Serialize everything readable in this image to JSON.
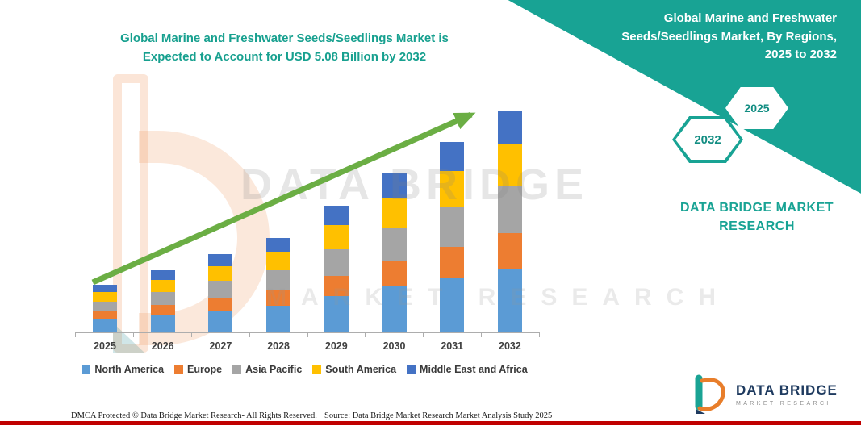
{
  "colors": {
    "teal": "#18A394",
    "red_line": "#C00000",
    "arrow_green": "#6BAE44",
    "watermark_gray": "#BDBDBD"
  },
  "header": {
    "title_lines": [
      "Global Marine and Freshwater Seeds/Seedlings Market is",
      "Expected to Account for USD 5.08 Billion by 2032"
    ]
  },
  "right_panel": {
    "title_lines": [
      "Global Marine and Freshwater",
      "Seeds/Seedlings Market, By Regions,",
      "2025 to 2032"
    ],
    "hexagons": [
      "2032",
      "2025"
    ],
    "wordmark_lines": [
      "DATA BRIDGE MARKET",
      "RESEARCH"
    ]
  },
  "watermark": {
    "big_text": "DATA BRIDGE",
    "sub_text": "MARKET RESEARCH"
  },
  "chart_data": {
    "type": "bar",
    "stacked": true,
    "title": "Global Marine and Freshwater Seeds/Seedlings Market is Expected to Account for USD 5.08 Billion by 2032",
    "unit": "USD Billion",
    "categories": [
      "2025",
      "2026",
      "2027",
      "2028",
      "2029",
      "2030",
      "2031",
      "2032"
    ],
    "series": [
      {
        "name": "North America",
        "color": "#5B9BD5",
        "values": [
          0.32,
          0.41,
          0.52,
          0.63,
          0.84,
          1.06,
          1.26,
          1.47
        ]
      },
      {
        "name": "Europe",
        "color": "#ED7D31",
        "values": [
          0.18,
          0.23,
          0.29,
          0.35,
          0.46,
          0.58,
          0.7,
          0.81
        ]
      },
      {
        "name": "Asia Pacific",
        "color": "#A5A5A5",
        "values": [
          0.22,
          0.3,
          0.38,
          0.46,
          0.61,
          0.77,
          0.91,
          1.07
        ]
      },
      {
        "name": "South America",
        "color": "#FFC000",
        "values": [
          0.21,
          0.27,
          0.34,
          0.41,
          0.55,
          0.69,
          0.83,
          0.96
        ]
      },
      {
        "name": "Middle East and Africa",
        "color": "#4472C4",
        "values": [
          0.17,
          0.22,
          0.27,
          0.33,
          0.44,
          0.55,
          0.65,
          0.77
        ]
      }
    ],
    "totals": [
      1.1,
      1.43,
      1.8,
      2.18,
      2.9,
      3.65,
      4.35,
      5.08
    ],
    "xlabel": "",
    "ylabel": "",
    "ylim": [
      0,
      5.7
    ],
    "grid": false,
    "legend_position": "bottom",
    "annotations": [
      {
        "type": "trend-arrow",
        "direction": "up",
        "color": "#6BAE44"
      }
    ]
  },
  "footer": {
    "dmca": "DMCA Protected © Data Bridge Market Research-  All Rights Reserved.",
    "source": "Source: Data Bridge Market Research  Market Analysis Study 2025"
  },
  "logo": {
    "brand": "DATA BRIDGE",
    "tagline": "MARKET RESEARCH"
  }
}
